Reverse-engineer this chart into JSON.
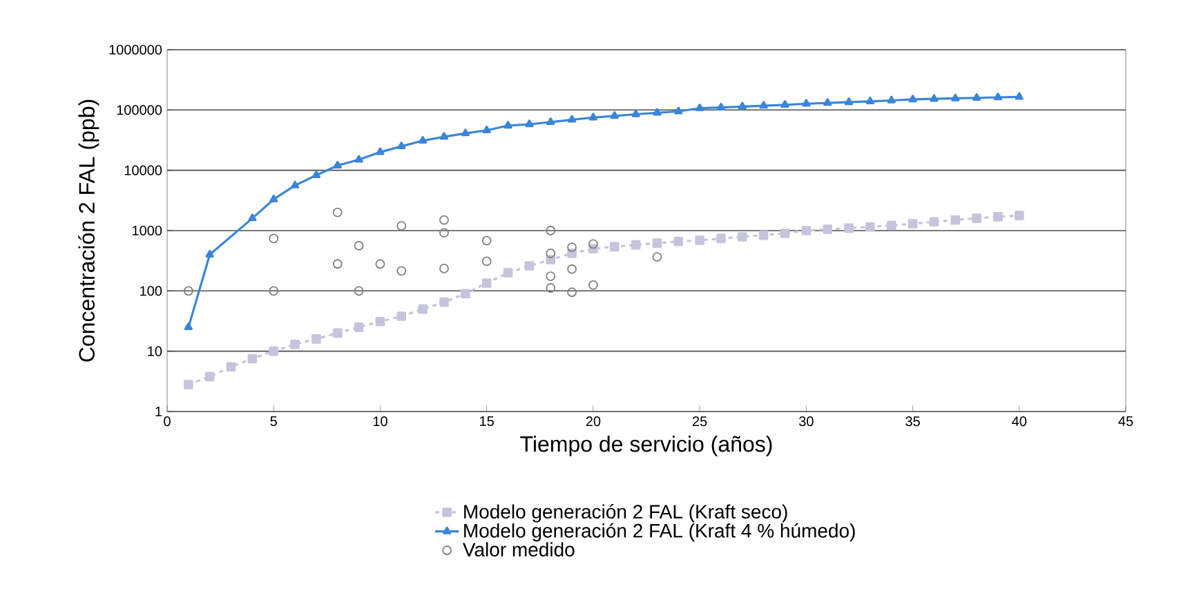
{
  "chart_data": {
    "type": "line",
    "xlabel": "Tiempo de servicio (años)",
    "ylabel": "Concentración 2 FAL (ppb)",
    "xlim": [
      0,
      45
    ],
    "xticks": [
      0,
      5,
      10,
      15,
      20,
      25,
      30,
      35,
      40,
      45
    ],
    "ylim": [
      1,
      1000000
    ],
    "yticks": [
      1,
      10,
      100,
      1000,
      10000,
      100000,
      1000000
    ],
    "log": "y",
    "grid": "y",
    "legend": "bottom",
    "series": [
      {
        "name": "Modelo generación 2 FAL (Kraft seco)",
        "color": "#c4c4dc",
        "marker": "square",
        "line_style": "dashed",
        "x": [
          1,
          2,
          3,
          4,
          5,
          6,
          7,
          8,
          9,
          10,
          11,
          12,
          13,
          14,
          15,
          16,
          17,
          18,
          19,
          20,
          21,
          22,
          23,
          24,
          25,
          26,
          27,
          28,
          29,
          30,
          31,
          32,
          33,
          34,
          35,
          36,
          37,
          38,
          39,
          40
        ],
        "values": [
          2.8,
          3.8,
          5.5,
          7.5,
          10,
          13,
          16,
          20,
          25,
          31,
          38,
          50,
          65,
          90,
          135,
          200,
          260,
          330,
          420,
          500,
          540,
          580,
          620,
          660,
          690,
          740,
          790,
          840,
          900,
          1000,
          1050,
          1100,
          1150,
          1220,
          1300,
          1400,
          1500,
          1600,
          1700,
          1780
        ]
      },
      {
        "name": "Modelo generación 2 FAL (Kraft 4 % húmedo)",
        "color": "#3a86d8",
        "marker": "triangle",
        "line_style": "solid",
        "x": [
          1,
          2,
          4,
          5,
          6,
          7,
          8,
          9,
          10,
          11,
          12,
          13,
          14,
          15,
          16,
          17,
          18,
          19,
          20,
          21,
          22,
          23,
          24,
          25,
          26,
          27,
          28,
          29,
          30,
          31,
          32,
          33,
          34,
          35,
          36,
          37,
          38,
          39,
          40
        ],
        "values": [
          25,
          400,
          1600,
          3300,
          5600,
          8300,
          12000,
          15000,
          20000,
          25000,
          31000,
          36000,
          41000,
          46000,
          55000,
          58000,
          63000,
          69000,
          75000,
          80000,
          85000,
          90000,
          95000,
          107000,
          110000,
          114000,
          118000,
          122000,
          127000,
          131000,
          135000,
          139000,
          144000,
          150000,
          153000,
          156000,
          159000,
          162000,
          165000
        ]
      },
      {
        "name": "Valor medido",
        "type": "scatter",
        "color": "#808080",
        "marker": "circle",
        "x": [
          1,
          5,
          5,
          8,
          8,
          9,
          9,
          10,
          11,
          11,
          13,
          13,
          13,
          15,
          15,
          18,
          18,
          18,
          18,
          19,
          19,
          19,
          20,
          20,
          23
        ],
        "values": [
          100,
          740,
          100,
          2000,
          280,
          560,
          100,
          280,
          1200,
          215,
          1500,
          920,
          235,
          680,
          310,
          1000,
          420,
          175,
          112,
          530,
          230,
          95,
          600,
          125,
          365
        ]
      }
    ]
  }
}
